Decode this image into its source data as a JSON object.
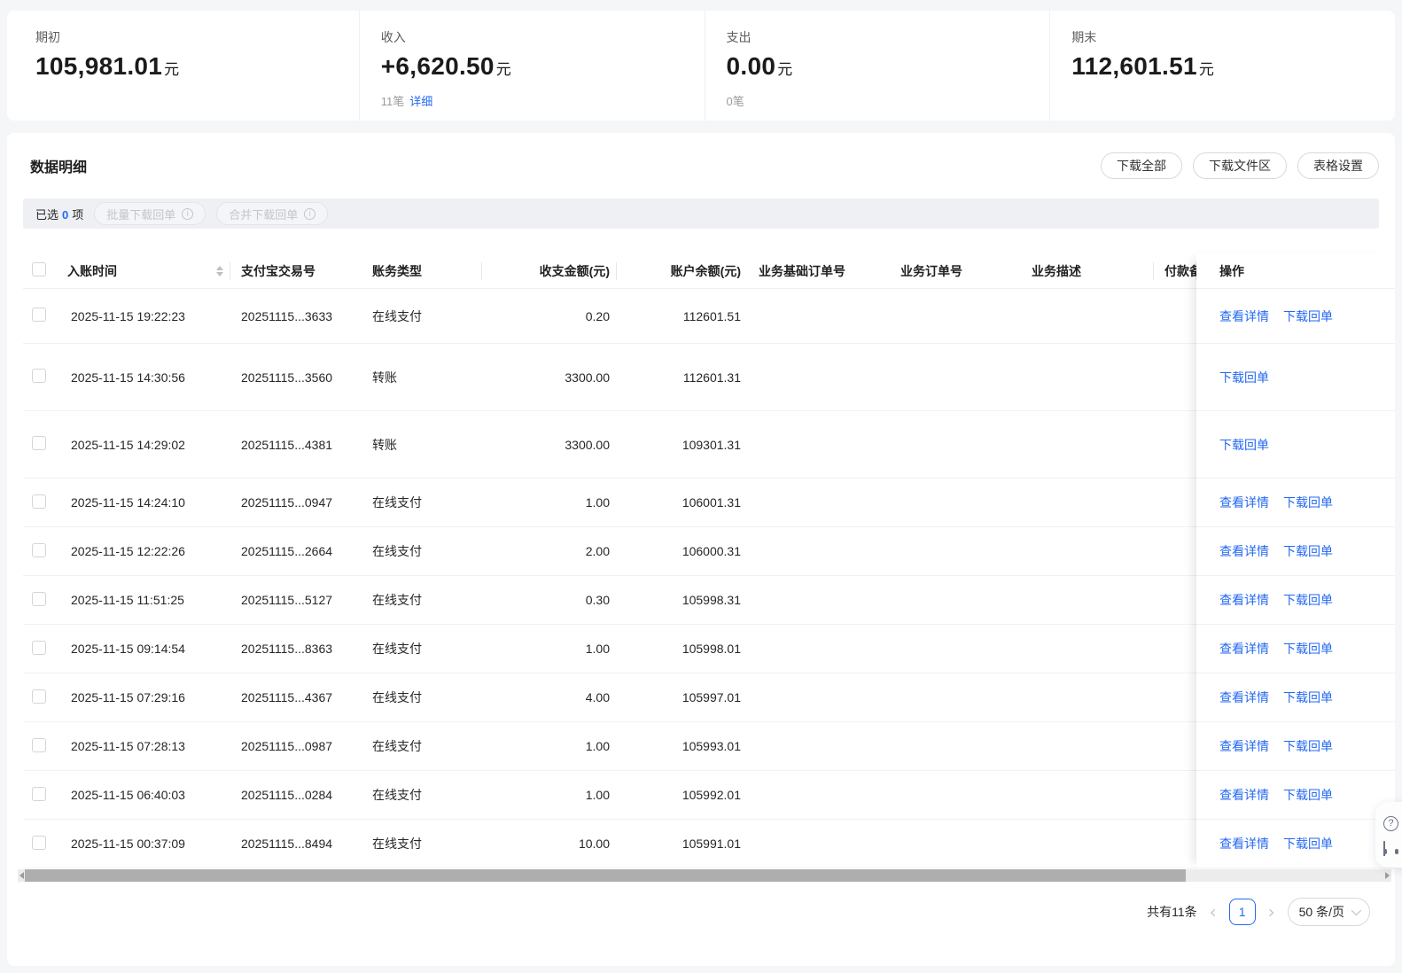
{
  "summary": {
    "opening": {
      "label": "期初",
      "value": "105,981.01",
      "unit": "元"
    },
    "income": {
      "label": "收入",
      "value": "+6,620.50",
      "unit": "元",
      "count": "11笔",
      "detail_link": "详细"
    },
    "expense": {
      "label": "支出",
      "value": "0.00",
      "unit": "元",
      "count": "0笔"
    },
    "closing": {
      "label": "期末",
      "value": "112,601.51",
      "unit": "元"
    }
  },
  "detail_panel": {
    "title": "数据明细",
    "toolbar": {
      "download_all": "下载全部",
      "download_zone": "下载文件区",
      "table_settings": "表格设置"
    },
    "selection_bar": {
      "selected_prefix": "已选",
      "selected_count": "0",
      "selected_suffix": "项",
      "batch_download": "批量下载回单",
      "merge_download": "合并下载回单"
    },
    "table": {
      "columns": [
        "入账时间",
        "支付宝交易号",
        "账务类型",
        "收支金额(元)",
        "账户余额(元)",
        "业务基础订单号",
        "业务订单号",
        "业务描述",
        "付款备",
        "操作"
      ],
      "rows": [
        {
          "time": "2025-11-15 19:22:23",
          "txn_id": "20251115...3633",
          "type": "在线支付",
          "amount": "0.20",
          "balance": "112601.51",
          "base_order": "",
          "order_no": "",
          "desc": "",
          "payment": "",
          "actions": [
            "查看详情",
            "下载回单"
          ]
        },
        {
          "time": "2025-11-15 14:30:56",
          "txn_id": "20251115...3560",
          "type": "转账",
          "amount": "3300.00",
          "balance": "112601.31",
          "base_order": "",
          "order_no": "",
          "desc": "",
          "payment": "",
          "actions": [
            "下载回单"
          ]
        },
        {
          "time": "2025-11-15 14:29:02",
          "txn_id": "20251115...4381",
          "type": "转账",
          "amount": "3300.00",
          "balance": "109301.31",
          "base_order": "",
          "order_no": "",
          "desc": "",
          "payment": "",
          "actions": [
            "下载回单"
          ]
        },
        {
          "time": "2025-11-15 14:24:10",
          "txn_id": "20251115...0947",
          "type": "在线支付",
          "amount": "1.00",
          "balance": "106001.31",
          "base_order": "",
          "order_no": "",
          "desc": "",
          "payment": "",
          "actions": [
            "查看详情",
            "下载回单"
          ]
        },
        {
          "time": "2025-11-15 12:22:26",
          "txn_id": "20251115...2664",
          "type": "在线支付",
          "amount": "2.00",
          "balance": "106000.31",
          "base_order": "",
          "order_no": "",
          "desc": "",
          "payment": "",
          "actions": [
            "查看详情",
            "下载回单"
          ]
        },
        {
          "time": "2025-11-15 11:51:25",
          "txn_id": "20251115...5127",
          "type": "在线支付",
          "amount": "0.30",
          "balance": "105998.31",
          "base_order": "",
          "order_no": "",
          "desc": "",
          "payment": "",
          "actions": [
            "查看详情",
            "下载回单"
          ]
        },
        {
          "time": "2025-11-15 09:14:54",
          "txn_id": "20251115...8363",
          "type": "在线支付",
          "amount": "1.00",
          "balance": "105998.01",
          "base_order": "",
          "order_no": "",
          "desc": "",
          "payment": "",
          "actions": [
            "查看详情",
            "下载回单"
          ]
        },
        {
          "time": "2025-11-15 07:29:16",
          "txn_id": "20251115...4367",
          "type": "在线支付",
          "amount": "4.00",
          "balance": "105997.01",
          "base_order": "",
          "order_no": "",
          "desc": "",
          "payment": "",
          "actions": [
            "查看详情",
            "下载回单"
          ]
        },
        {
          "time": "2025-11-15 07:28:13",
          "txn_id": "20251115...0987",
          "type": "在线支付",
          "amount": "1.00",
          "balance": "105993.01",
          "base_order": "",
          "order_no": "",
          "desc": "",
          "payment": "",
          "actions": [
            "查看详情",
            "下载回单"
          ]
        },
        {
          "time": "2025-11-15 06:40:03",
          "txn_id": "20251115...0284",
          "type": "在线支付",
          "amount": "1.00",
          "balance": "105992.01",
          "base_order": "",
          "order_no": "",
          "desc": "",
          "payment": "",
          "actions": [
            "查看详情",
            "下载回单"
          ]
        },
        {
          "time": "2025-11-15 00:37:09",
          "txn_id": "20251115...8494",
          "type": "在线支付",
          "amount": "10.00",
          "balance": "105991.01",
          "base_order": "",
          "order_no": "",
          "desc": "",
          "payment": "",
          "actions": [
            "查看详情",
            "下载回单"
          ]
        }
      ]
    },
    "pagination": {
      "total_text": "共有11条",
      "prev": "‹",
      "current_page": "1",
      "next": "›",
      "page_size": "50 条/页"
    }
  },
  "colors": {
    "accent": "#2468f2",
    "link": "#2468f2"
  }
}
